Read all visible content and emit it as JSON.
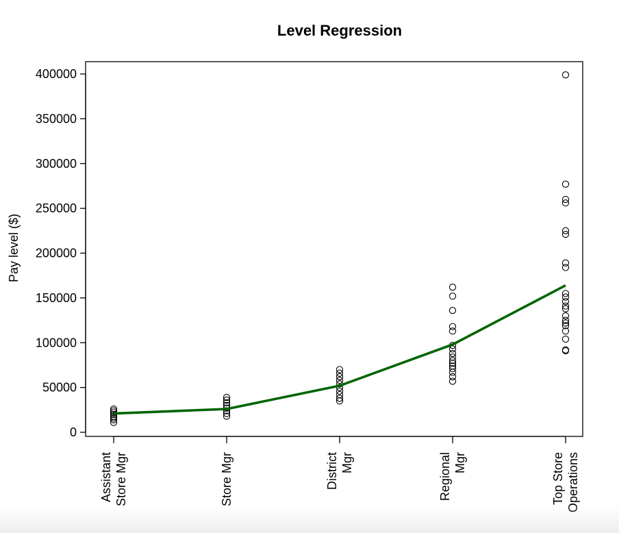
{
  "chart_data": {
    "type": "scatter",
    "title": "Level Regression",
    "xlabel": "",
    "ylabel": "Pay level ($)",
    "categories": [
      [
        "Assistant",
        "Store Mgr"
      ],
      [
        "Store Mgr"
      ],
      [
        "District",
        "Mgr"
      ],
      [
        "Regional",
        "Mgr"
      ],
      [
        "Top Store",
        "Operations"
      ]
    ],
    "ylim": [
      0,
      400000
    ],
    "yticks": [
      "0",
      "50000",
      "100000",
      "150000",
      "200000",
      "250000",
      "300000",
      "350000",
      "400000"
    ],
    "points": [
      [
        11000,
        14000,
        16000,
        18000,
        20000,
        22000,
        24000,
        26000
      ],
      [
        18000,
        21000,
        24000,
        27000,
        30000,
        33000,
        36000,
        39000
      ],
      [
        35000,
        38000,
        42000,
        46000,
        50000,
        54000,
        58000,
        62000,
        66000,
        70000
      ],
      [
        57000,
        62000,
        67000,
        71000,
        74000,
        77000,
        80000,
        84000,
        88000,
        93000,
        97000,
        113000,
        118000,
        136000,
        152000,
        162000
      ],
      [
        91000,
        92000,
        104000,
        113000,
        119000,
        122000,
        125000,
        130000,
        138000,
        141000,
        146000,
        151000,
        155000,
        184000,
        189000,
        221000,
        225000,
        256000,
        260000,
        277000,
        399000
      ]
    ],
    "fit_line": {
      "name": "",
      "color": "#006400",
      "y": [
        21000,
        26000,
        52000,
        98000,
        164000
      ]
    },
    "point_style": "open-circle",
    "grid": false,
    "legend": "none"
  }
}
